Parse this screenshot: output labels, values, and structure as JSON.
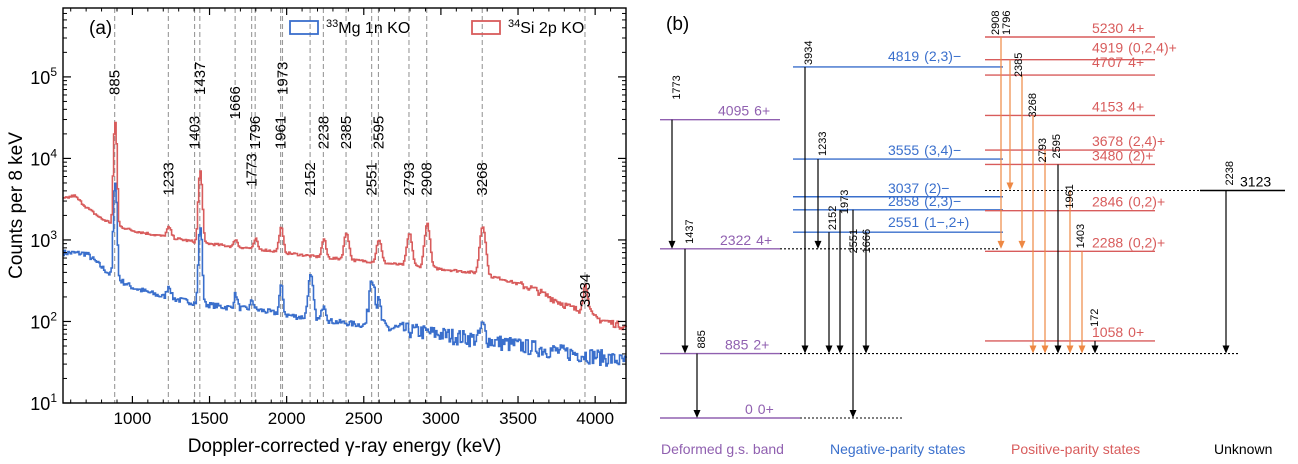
{
  "chart_data": [
    {
      "type": "line",
      "panel_label": "(a)",
      "xlabel": "Doppler-corrected γ-ray energy (keV)",
      "ylabel": "Counts per 8 keV",
      "xlim": [
        550,
        4200
      ],
      "ylim": [
        10,
        700000
      ],
      "yscale": "log",
      "x_ticks": [
        1000,
        1500,
        2000,
        2500,
        3000,
        3500,
        4000
      ],
      "x_tick_labels": [
        "1000",
        "1500",
        "2000",
        "2500",
        "3000",
        "3500",
        "4000"
      ],
      "y_ticks": [
        10,
        100,
        1000,
        10000,
        100000
      ],
      "y_tick_label_mant": [
        "10",
        "10",
        "10",
        "10",
        "10"
      ],
      "y_tick_label_exp": [
        "1",
        "2",
        "3",
        "4",
        "5"
      ],
      "legend_placement": "top-right",
      "legend": [
        {
          "pre": "",
          "sup": "33",
          "post": "Mg 1n KO",
          "color": "#3a6fcc"
        },
        {
          "pre": "",
          "sup": "34",
          "post": "Si 2p KO",
          "color": "#d85c5c"
        }
      ],
      "peak_lines": [
        885,
        1233,
        1403,
        1437,
        1666,
        1773,
        1796,
        1961,
        1973,
        2152,
        2238,
        2385,
        2551,
        2595,
        2793,
        2908,
        3268,
        3934
      ],
      "peak_labels": [
        {
          "text": "885",
          "x": 885,
          "y": 60000
        },
        {
          "text": "1233",
          "x": 1233,
          "y": 3500
        },
        {
          "text": "1403",
          "x": 1403,
          "y": 13000
        },
        {
          "text": "1437",
          "x": 1437,
          "y": 60000
        },
        {
          "text": "1666",
          "x": 1666,
          "y": 30000
        },
        {
          "text": "1773",
          "x": 1773,
          "y": 4500
        },
        {
          "text": "1796",
          "x": 1796,
          "y": 13000
        },
        {
          "text": "1961",
          "x": 1961,
          "y": 13000
        },
        {
          "text": "1973",
          "x": 1973,
          "y": 60000
        },
        {
          "text": "2152",
          "x": 2152,
          "y": 3500
        },
        {
          "text": "2238",
          "x": 2238,
          "y": 13000
        },
        {
          "text": "2385",
          "x": 2385,
          "y": 13000
        },
        {
          "text": "2551",
          "x": 2551,
          "y": 3500
        },
        {
          "text": "2595",
          "x": 2595,
          "y": 13000
        },
        {
          "text": "2793",
          "x": 2793,
          "y": 3500
        },
        {
          "text": "2908",
          "x": 2908,
          "y": 3500
        },
        {
          "text": "3268",
          "x": 3268,
          "y": 3500
        },
        {
          "text": "3934",
          "x": 3934,
          "y": 150
        }
      ],
      "series": [
        {
          "name": "33Mg 1n KO",
          "color": "#3a6fcc",
          "baseline": [
            [
              550,
              700
            ],
            [
              700,
              680
            ],
            [
              850,
              380
            ],
            [
              1000,
              260
            ],
            [
              1200,
              200
            ],
            [
              1400,
              170
            ],
            [
              1600,
              150
            ],
            [
              1800,
              140
            ],
            [
              2000,
              120
            ],
            [
              2200,
              105
            ],
            [
              2400,
              95
            ],
            [
              2600,
              85
            ],
            [
              2800,
              78
            ],
            [
              3000,
              70
            ],
            [
              3200,
              62
            ],
            [
              3400,
              55
            ],
            [
              3600,
              48
            ],
            [
              3800,
              42
            ],
            [
              4000,
              38
            ],
            [
              4200,
              32
            ]
          ],
          "peaks": [
            [
              885,
              5000,
              8
            ],
            [
              1233,
              80,
              12
            ],
            [
              1437,
              1300,
              9
            ],
            [
              1666,
              70,
              10
            ],
            [
              1773,
              40,
              10
            ],
            [
              1961,
              150,
              10
            ],
            [
              2152,
              250,
              14
            ],
            [
              2238,
              60,
              12
            ],
            [
              2551,
              300,
              15
            ],
            [
              2595,
              80,
              12
            ],
            [
              3268,
              30,
              15
            ]
          ],
          "noise_start": 2500,
          "noise_amp": 0.22
        },
        {
          "name": "34Si 2p KO",
          "color": "#d85c5c",
          "baseline": [
            [
              550,
              3200
            ],
            [
              620,
              3500
            ],
            [
              700,
              2500
            ],
            [
              800,
              1800
            ],
            [
              900,
              1500
            ],
            [
              1000,
              1300
            ],
            [
              1200,
              1100
            ],
            [
              1400,
              950
            ],
            [
              1600,
              850
            ],
            [
              1800,
              780
            ],
            [
              2000,
              690
            ],
            [
              2200,
              620
            ],
            [
              2400,
              570
            ],
            [
              2600,
              530
            ],
            [
              2800,
              480
            ],
            [
              3000,
              440
            ],
            [
              3200,
              400
            ],
            [
              3400,
              330
            ],
            [
              3600,
              250
            ],
            [
              3800,
              160
            ],
            [
              4000,
              110
            ],
            [
              4200,
              85
            ]
          ],
          "peaks": [
            [
              885,
              26000,
              8
            ],
            [
              1233,
              350,
              14
            ],
            [
              1437,
              6000,
              10
            ],
            [
              1666,
              200,
              10
            ],
            [
              1796,
              250,
              10
            ],
            [
              1961,
              700,
              12
            ],
            [
              2238,
              420,
              12
            ],
            [
              2385,
              650,
              14
            ],
            [
              2595,
              480,
              14
            ],
            [
              2793,
              700,
              15
            ],
            [
              2908,
              1100,
              15
            ],
            [
              3268,
              1100,
              16
            ],
            [
              3934,
              150,
              16
            ]
          ],
          "noise_start": 3500,
          "noise_amp": 0.1
        }
      ]
    },
    {
      "type": "level-scheme",
      "panel_label": "(b)",
      "groups": [
        {
          "name": "Deformed g.s. band",
          "color": "#9060b0"
        },
        {
          "name": "Negative-parity states",
          "color": "#3a6fcc"
        },
        {
          "name": "Positive-parity states",
          "color": "#d85c5c"
        },
        {
          "name": "Unknown",
          "color": "#000000"
        }
      ],
      "levels": [
        {
          "energy": "0",
          "jp": "0+",
          "group": 0
        },
        {
          "energy": "885",
          "jp": "2+",
          "group": 0
        },
        {
          "energy": "2322",
          "jp": "4+",
          "group": 0
        },
        {
          "energy": "4095",
          "jp": "6+",
          "group": 0
        },
        {
          "energy": "2551",
          "jp": "(1−,2+)",
          "group": 1
        },
        {
          "energy": "2858",
          "jp": "(2,3)−",
          "group": 1
        },
        {
          "energy": "3037",
          "jp": "(2)−",
          "group": 1
        },
        {
          "energy": "3555",
          "jp": "(3,4)−",
          "group": 1
        },
        {
          "energy": "4819",
          "jp": "(2,3)−",
          "group": 1
        },
        {
          "energy": "1058",
          "jp": "0+",
          "group": 2
        },
        {
          "energy": "2288",
          "jp": "(0,2)+",
          "group": 2
        },
        {
          "energy": "2846",
          "jp": "(0,2)+",
          "group": 2
        },
        {
          "energy": "3480",
          "jp": "(2)+",
          "group": 2
        },
        {
          "energy": "3678",
          "jp": "(2,4)+",
          "group": 2
        },
        {
          "energy": "4153",
          "jp": "4+",
          "group": 2
        },
        {
          "energy": "4707",
          "jp": "4+",
          "group": 2
        },
        {
          "energy": "4919",
          "jp": "(0,2,4)+",
          "group": 2
        },
        {
          "energy": "5230",
          "jp": "4+",
          "group": 2
        },
        {
          "energy": "3123",
          "jp": "",
          "group": 3
        }
      ],
      "transitions": [
        "1773",
        "1437",
        "885",
        "3934",
        "1233",
        "2152",
        "1973",
        "2551",
        "1666",
        "2908",
        "1796",
        "2385",
        "3268",
        "2793",
        "2595",
        "1961",
        "1403",
        "172",
        "2238"
      ]
    }
  ]
}
